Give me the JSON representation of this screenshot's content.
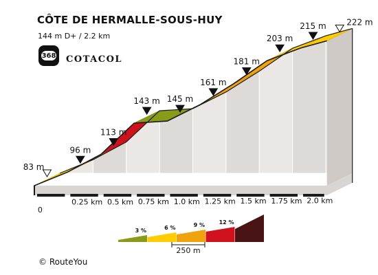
{
  "header": {
    "title": "CÔTE DE HERMALLE-SOUS-HUY",
    "subtitle": "144 m D+ / 2.2 km",
    "badge_number": "368",
    "brand": "COTACOL"
  },
  "footer": {
    "copyright": "© RouteYou"
  },
  "colors": {
    "0-3%": "#8a9a1b",
    "3-6%": "#ffcc00",
    "6-9%": "#f0a30a",
    "9-12%": "#d0121f",
    "12%+": "#4a1414"
  },
  "chart_data": {
    "type": "area",
    "title": "CÔTE DE HERMALLE-SOUS-HUY",
    "xlabel": "",
    "ylabel": "",
    "unit_x": "km",
    "unit_y": "m",
    "points": [
      {
        "km": 0.0,
        "elev": 83,
        "label": "83 m",
        "marker": "start"
      },
      {
        "km": 0.25,
        "elev": 96,
        "label": "96 m",
        "marker": "point"
      },
      {
        "km": 0.5,
        "elev": 113,
        "label": "113 m",
        "marker": "point"
      },
      {
        "km": 0.75,
        "elev": 143,
        "label": "143 m",
        "marker": "point"
      },
      {
        "km": 1.0,
        "elev": 145,
        "label": "145 m",
        "marker": "point"
      },
      {
        "km": 1.25,
        "elev": 161,
        "label": "161 m",
        "marker": "point"
      },
      {
        "km": 1.5,
        "elev": 181,
        "label": "181 m",
        "marker": "point"
      },
      {
        "km": 1.75,
        "elev": 203,
        "label": "203 m",
        "marker": "point"
      },
      {
        "km": 2.0,
        "elev": 215,
        "label": "215 m",
        "marker": "point"
      },
      {
        "km": 2.2,
        "elev": 222,
        "label": "222 m",
        "marker": "end"
      }
    ],
    "segment_colors": [
      "3-6%",
      "6-9%",
      "9-12%",
      "0-3%",
      "6-9%",
      "6-9%",
      "6-9%",
      "3-6%",
      "3-6%"
    ],
    "x_ticks": [
      "0",
      "0.25 km",
      "0.5 km",
      "0.75 km",
      "1.0 km",
      "1.25 km",
      "1.5 km",
      "1.75 km",
      "2.0 km"
    ],
    "legend": [
      {
        "label": "3 %",
        "key": "0-3%"
      },
      {
        "label": "6 %",
        "key": "3-6%"
      },
      {
        "label": "9 %",
        "key": "6-9%"
      },
      {
        "label": "12 %",
        "key": "9-12%"
      },
      {
        "label": "",
        "key": "12%+"
      }
    ],
    "scale_label": "250 m"
  }
}
